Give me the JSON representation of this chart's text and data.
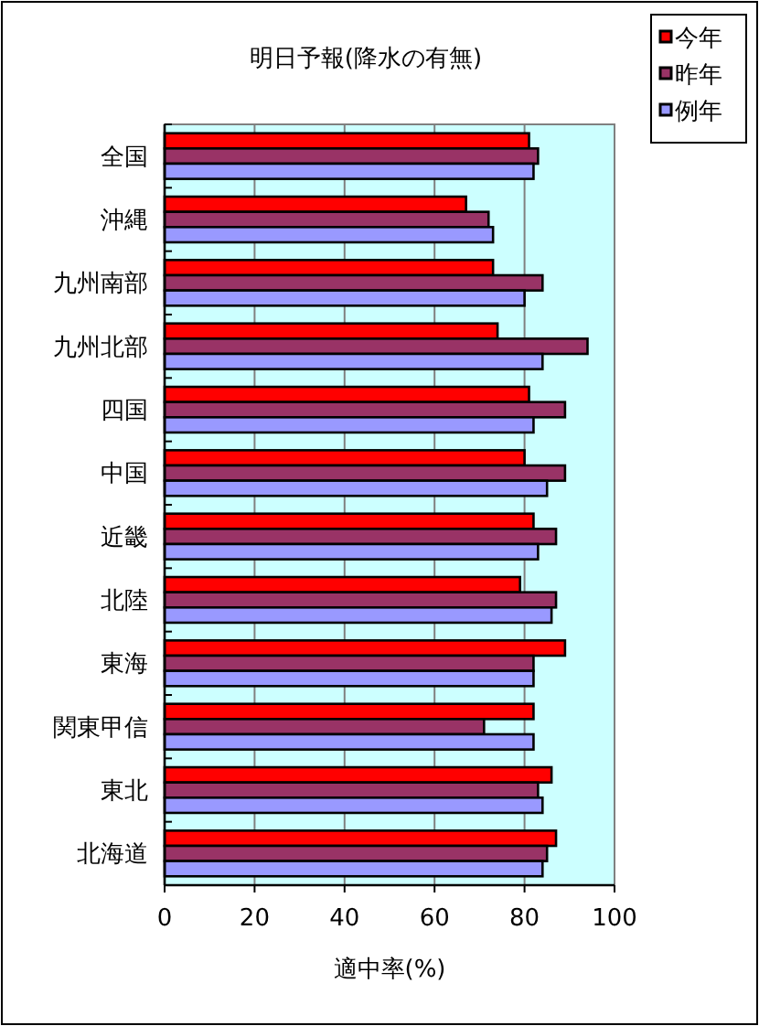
{
  "chart_data": {
    "type": "bar",
    "orientation": "horizontal",
    "title": "明日予報(降水の有無)",
    "xlabel": "適中率(%)",
    "categories": [
      "全国",
      "沖縄",
      "九州南部",
      "九州北部",
      "四国",
      "中国",
      "近畿",
      "北陸",
      "東海",
      "関東甲信",
      "東北",
      "北海道"
    ],
    "series": [
      {
        "name": "今年",
        "color": "#ff0000",
        "values": [
          81,
          67,
          73,
          74,
          81,
          80,
          82,
          79,
          89,
          82,
          86,
          87
        ]
      },
      {
        "name": "昨年",
        "color": "#993366",
        "values": [
          83,
          72,
          84,
          94,
          89,
          89,
          87,
          87,
          82,
          71,
          83,
          85
        ]
      },
      {
        "name": "例年",
        "color": "#9999ff",
        "values": [
          82,
          73,
          80,
          84,
          82,
          85,
          83,
          86,
          82,
          82,
          84,
          84
        ]
      }
    ],
    "xlim": [
      0,
      100
    ],
    "xticks": [
      0,
      20,
      40,
      60,
      80,
      100
    ],
    "grid": "x",
    "legend": "top right"
  }
}
